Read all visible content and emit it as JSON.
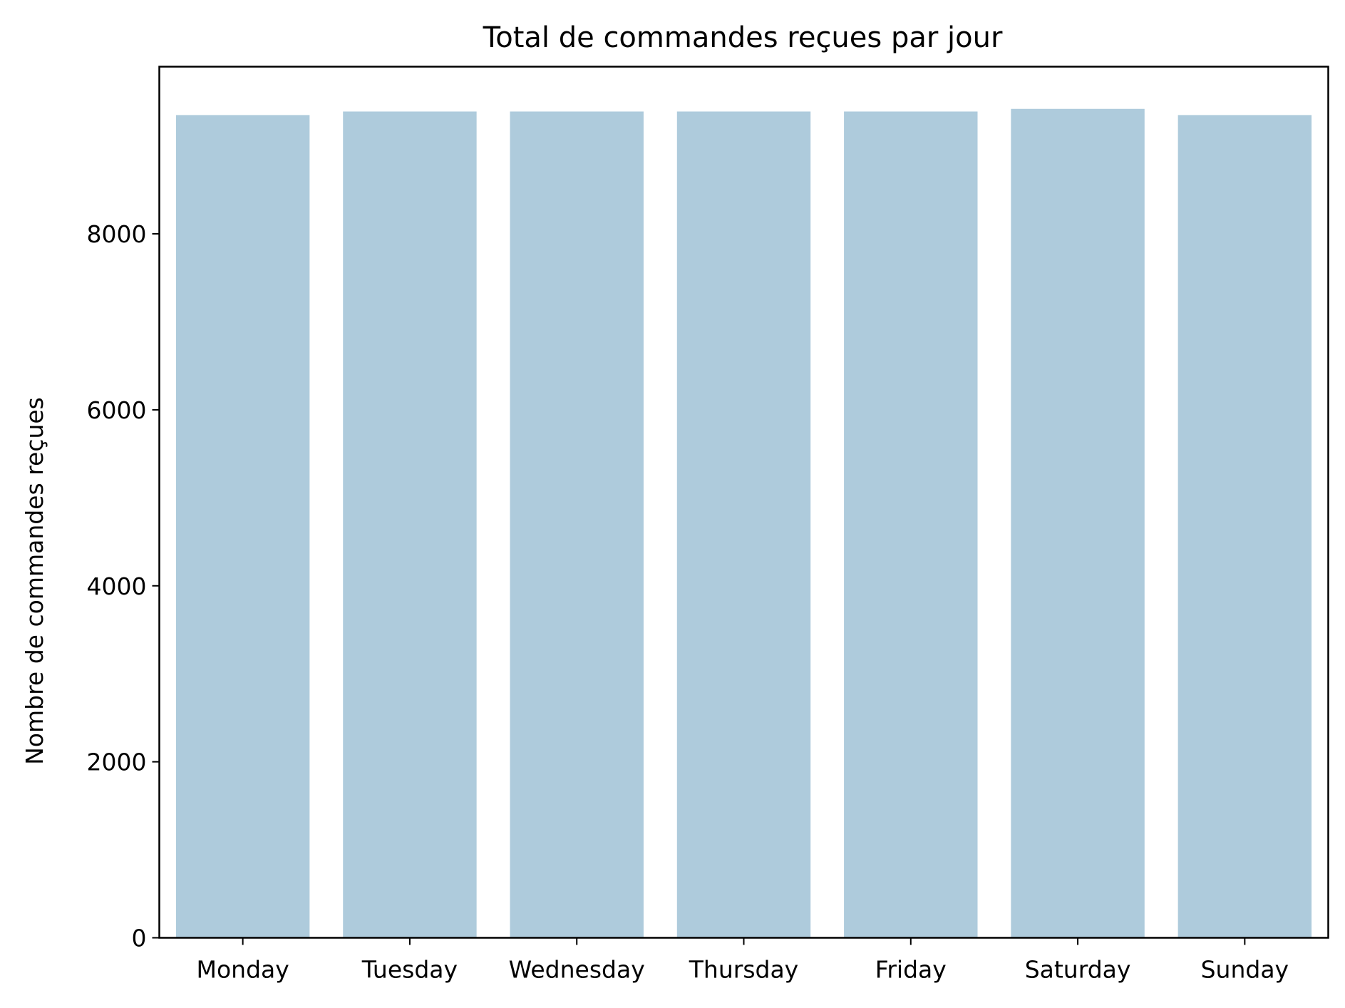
{
  "chart_data": {
    "type": "bar",
    "title": "Total de commandes reçues par jour",
    "xlabel": "",
    "ylabel": "Nombre de commandes reçues",
    "categories": [
      "Monday",
      "Tuesday",
      "Wednesday",
      "Thursday",
      "Friday",
      "Saturday",
      "Sunday"
    ],
    "values": [
      9350,
      9390,
      9390,
      9390,
      9390,
      9420,
      9350
    ],
    "ylim": [
      0,
      9900
    ],
    "yticks": [
      0,
      2000,
      4000,
      6000,
      8000
    ],
    "ytick_labels": [
      "0",
      "2000",
      "4000",
      "6000",
      "8000"
    ],
    "bar_color": "#aecbdc",
    "grid": false,
    "legend": "none"
  }
}
